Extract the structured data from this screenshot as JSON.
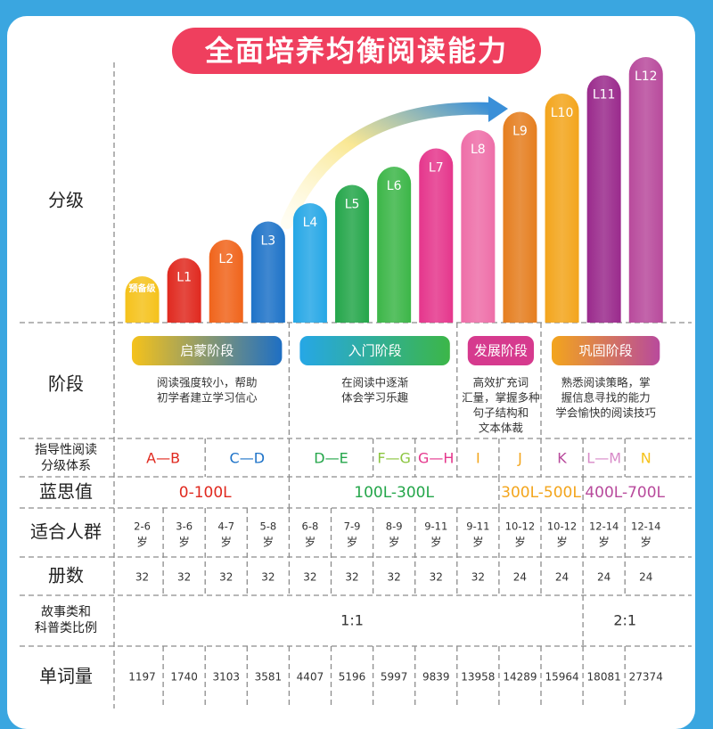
{
  "title": "全面培养均衡阅读能力",
  "row_labels": {
    "level": "分级",
    "stage": "阶段",
    "guided_line1": "指导性阅读",
    "guided_line2": "分级体系",
    "lexile": "蓝思值",
    "age": "适合人群",
    "volumes": "册数",
    "ratio_line1": "故事类和",
    "ratio_line2": "科普类比例",
    "words": "单词量"
  },
  "levels": [
    {
      "label": "预备级",
      "color": "#f5c21b",
      "value": 1
    },
    {
      "label": "L1",
      "color": "#e0291f",
      "value": 2
    },
    {
      "label": "L2",
      "color": "#f0641b",
      "value": 3
    },
    {
      "label": "L3",
      "color": "#1e73c8",
      "value": 4
    },
    {
      "label": "L4",
      "color": "#26a7e6",
      "value": 5
    },
    {
      "label": "L5",
      "color": "#24a64a",
      "value": 6
    },
    {
      "label": "L6",
      "color": "#3cb648",
      "value": 7
    },
    {
      "label": "L7",
      "color": "#e5368c",
      "value": 8
    },
    {
      "label": "L8",
      "color": "#ee6ea8",
      "value": 9
    },
    {
      "label": "L9",
      "color": "#e57e1f",
      "value": 10
    },
    {
      "label": "L10",
      "color": "#f3a51c",
      "value": 11
    },
    {
      "label": "L11",
      "color": "#9a2a8c",
      "value": 12
    },
    {
      "label": "L12",
      "color": "#b84a9c",
      "value": 13
    }
  ],
  "stages": [
    {
      "label": "启蒙阶段",
      "from": 0,
      "to": 3,
      "colors": [
        "#f5c21b",
        "#1e6fc4"
      ],
      "desc_line1": "阅读强度较小，帮助",
      "desc_line2": "初学者建立学习信心",
      "desc_line3": ""
    },
    {
      "label": "入门阶段",
      "from": 4,
      "to": 7,
      "colors": [
        "#26a7e6",
        "#3cb648"
      ],
      "desc_line1": "在阅读中逐渐",
      "desc_line2": "体会学习乐趣",
      "desc_line3": ""
    },
    {
      "label": "发展阶段",
      "from": 8,
      "to": 9,
      "colors": [
        "#d63a8e",
        "#d63a8e"
      ],
      "desc_line1": "高效扩充词",
      "desc_line2": "汇量，掌握多种",
      "desc_line3": "句子结构和",
      "desc_line4": "文本体裁"
    },
    {
      "label": "巩固阶段",
      "from": 10,
      "to": 12,
      "colors": [
        "#f3a51c",
        "#b84a9c"
      ],
      "desc_line1": "熟悉阅读策略，掌",
      "desc_line2": "握信息寻找的能力",
      "desc_line3": "学会愉快的阅读技巧"
    }
  ],
  "guided": [
    {
      "label": "A—B",
      "from": 0,
      "to": 1,
      "color": "#e0291f"
    },
    {
      "label": "C—D",
      "from": 2,
      "to": 3,
      "color": "#1e73c8"
    },
    {
      "label": "D—E",
      "from": 4,
      "to": 5,
      "color": "#24a64a"
    },
    {
      "label": "F—G",
      "from": 6,
      "to": 6,
      "color": "#8bc53f"
    },
    {
      "label": "G—H",
      "from": 7,
      "to": 7,
      "color": "#e5368c"
    },
    {
      "label": "I",
      "from": 8,
      "to": 8,
      "color": "#f3a51c"
    },
    {
      "label": "J",
      "from": 9,
      "to": 9,
      "color": "#f3a51c"
    },
    {
      "label": "K",
      "from": 10,
      "to": 10,
      "color": "#b84a9c"
    },
    {
      "label": "L—M",
      "from": 11,
      "to": 11,
      "color": "#d88ac8"
    },
    {
      "label": "N",
      "from": 12,
      "to": 12,
      "color": "#f5c21b"
    }
  ],
  "lexile": [
    {
      "label": "0-100L",
      "from": 0,
      "to": 3,
      "color": "#e0291f"
    },
    {
      "label": "100L-300L",
      "from": 4,
      "to": 8,
      "color": "#24a64a"
    },
    {
      "label": "300L-500L",
      "from": 9,
      "to": 10,
      "color": "#f3a51c"
    },
    {
      "label": "400L-700L",
      "from": 11,
      "to": 12,
      "color": "#b84a9c"
    }
  ],
  "ages": [
    "2-6",
    "3-6",
    "4-7",
    "5-8",
    "6-8",
    "7-9",
    "8-9",
    "9-11",
    "9-11",
    "10-12",
    "10-12",
    "12-14",
    "12-14"
  ],
  "age_unit": "岁",
  "volumes": [
    "32",
    "32",
    "32",
    "32",
    "32",
    "32",
    "32",
    "32",
    "32",
    "24",
    "24",
    "24",
    "24"
  ],
  "ratios": [
    {
      "label": "1:1",
      "from": 0,
      "to": 10
    },
    {
      "label": "2:1",
      "from": 11,
      "to": 12
    }
  ],
  "words": [
    "1197",
    "1740",
    "3103",
    "3581",
    "4407",
    "5196",
    "5997",
    "9839",
    "13958",
    "14289",
    "15964",
    "18081",
    "27374"
  ]
}
